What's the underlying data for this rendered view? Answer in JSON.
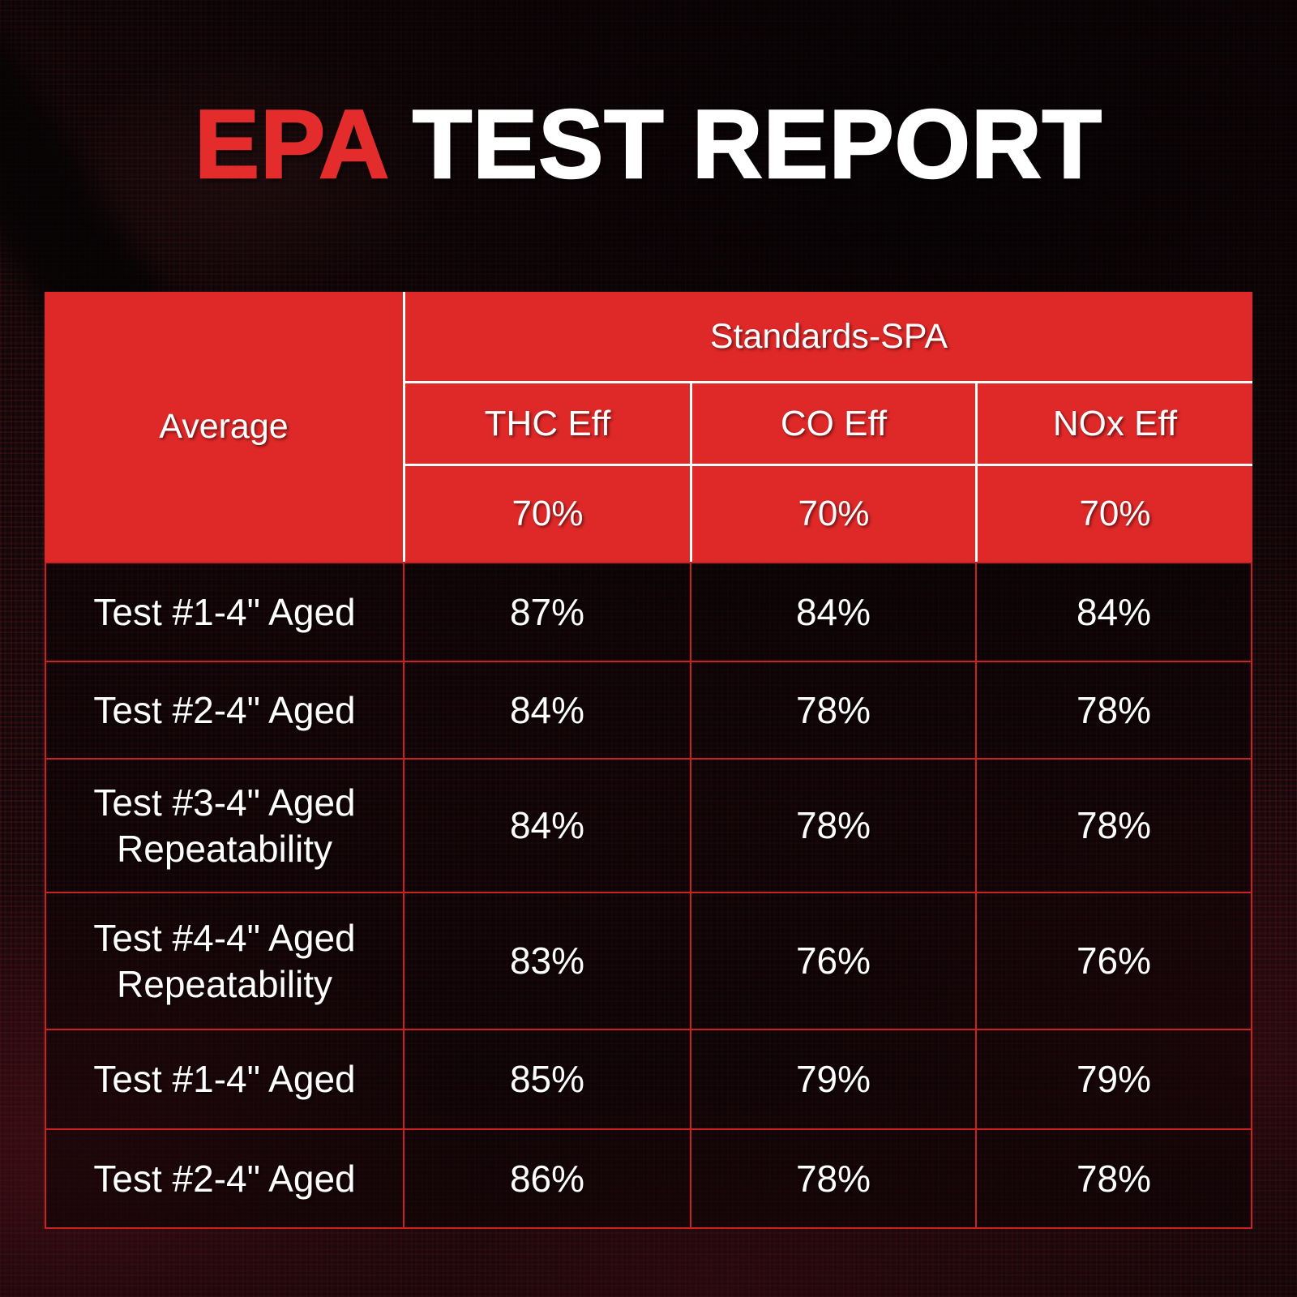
{
  "title": {
    "highlight": "EPA",
    "rest": "TEST REPORT"
  },
  "colors": {
    "title_red": "#e52c2c",
    "header_red": "#df2828",
    "grid_border_red": "#cb2121",
    "divider_white": "#ffffff",
    "text_white": "#ffffff",
    "background_dark": "#150b0d"
  },
  "chart_data": {
    "type": "table",
    "title": "EPA TEST REPORT",
    "row_header": "Average",
    "group_header": "Standards-SPA",
    "columns": [
      "THC Eff",
      "CO Eff",
      "NOx Eff"
    ],
    "standards": [
      "70%",
      "70%",
      "70%"
    ],
    "rows": [
      {
        "label": "Test #1-4\" Aged",
        "values": [
          "87%",
          "84%",
          "84%"
        ]
      },
      {
        "label": "Test #2-4\" Aged",
        "values": [
          "84%",
          "78%",
          "78%"
        ]
      },
      {
        "label": "Test #3-4\" Aged Repeatability",
        "values": [
          "84%",
          "78%",
          "78%"
        ]
      },
      {
        "label": "Test #4-4\" Aged Repeatability",
        "values": [
          "83%",
          "76%",
          "76%"
        ]
      },
      {
        "label": "Test #1-4\" Aged",
        "values": [
          "85%",
          "79%",
          "79%"
        ]
      },
      {
        "label": "Test #2-4\" Aged",
        "values": [
          "86%",
          "78%",
          "78%"
        ]
      }
    ]
  }
}
